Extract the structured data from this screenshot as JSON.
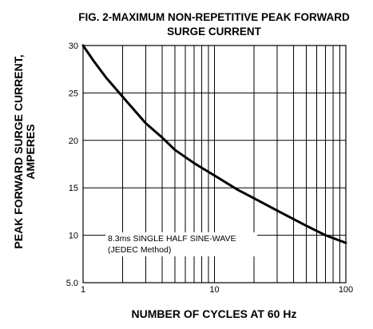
{
  "chart_data": {
    "type": "line",
    "title": "FIG. 2-MAXIMUM NON-REPETITIVE PEAK FORWARD",
    "subtitle": "SURGE CURRENT",
    "xlabel": "NUMBER OF CYCLES AT 60 Hz",
    "ylabel_line1": "PEAK  FORWARD SURGE CURRENT,",
    "ylabel_line2": "AMPERES",
    "x_scale": "log",
    "xlim": [
      1,
      100
    ],
    "ylim": [
      5,
      30
    ],
    "x_ticks": [
      {
        "value": 1,
        "label": "1"
      },
      {
        "value": 10,
        "label": "10"
      },
      {
        "value": 100,
        "label": "100"
      }
    ],
    "y_ticks": [
      {
        "value": 5,
        "label": "5.0"
      },
      {
        "value": 10,
        "label": "10"
      },
      {
        "value": 15,
        "label": "15"
      },
      {
        "value": 20,
        "label": "20"
      },
      {
        "value": 25,
        "label": "25"
      },
      {
        "value": 30,
        "label": "30"
      }
    ],
    "x_minor_grid": [
      2,
      3,
      4,
      5,
      6,
      7,
      8,
      9,
      20,
      30,
      40,
      50,
      60,
      70,
      80,
      90
    ],
    "grid": true,
    "annotation_line1": "8.3ms SINGLE HALF SINE-WAVE",
    "annotation_line2": "(JEDEC Method)",
    "series": [
      {
        "x": [
          1,
          1.2,
          1.5,
          2,
          3,
          4,
          5,
          7,
          10,
          15,
          20,
          30,
          50,
          70,
          100
        ],
        "y": [
          30,
          28.4,
          26.6,
          24.6,
          21.8,
          20.3,
          19.0,
          17.6,
          16.3,
          14.8,
          13.9,
          12.6,
          11.0,
          10.0,
          9.2
        ]
      }
    ]
  }
}
